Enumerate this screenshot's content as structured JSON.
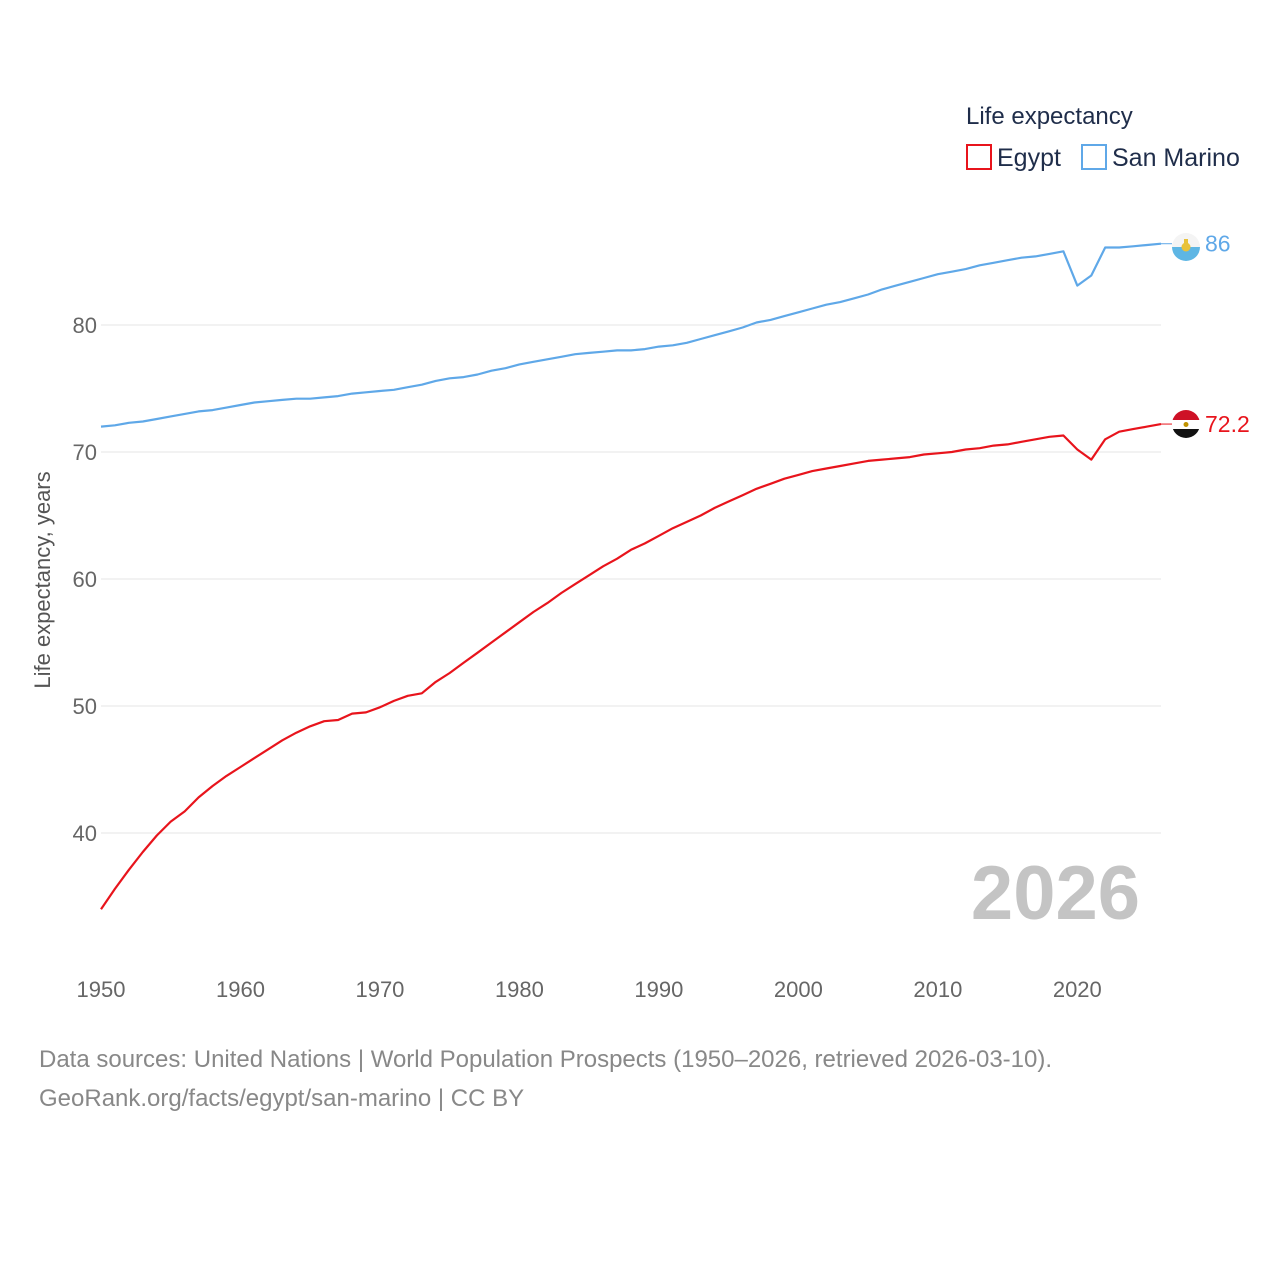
{
  "chart_data": {
    "type": "line",
    "legend_title": "Life expectancy",
    "ylabel": "Life expectancy, years",
    "xlabel": "",
    "xlim": [
      1950,
      2026
    ],
    "ylim": [
      32,
      90
    ],
    "x_ticks": [
      1950,
      1960,
      1970,
      1980,
      1990,
      2000,
      2010,
      2020
    ],
    "y_ticks": [
      40,
      50,
      60,
      70,
      80
    ],
    "current_year": "2026",
    "legend_position": "top-right",
    "x": [
      1950,
      1951,
      1952,
      1953,
      1954,
      1955,
      1956,
      1957,
      1958,
      1959,
      1960,
      1961,
      1962,
      1963,
      1964,
      1965,
      1966,
      1967,
      1968,
      1969,
      1970,
      1971,
      1972,
      1973,
      1974,
      1975,
      1976,
      1977,
      1978,
      1979,
      1980,
      1981,
      1982,
      1983,
      1984,
      1985,
      1986,
      1987,
      1988,
      1989,
      1990,
      1991,
      1992,
      1993,
      1994,
      1995,
      1996,
      1997,
      1998,
      1999,
      2000,
      2001,
      2002,
      2003,
      2004,
      2005,
      2006,
      2007,
      2008,
      2009,
      2010,
      2011,
      2012,
      2013,
      2014,
      2015,
      2016,
      2017,
      2018,
      2019,
      2020,
      2021,
      2022,
      2023,
      2024,
      2025,
      2026
    ],
    "series": [
      {
        "name": "Egypt",
        "color": "#e8141c",
        "end_label": "72.2",
        "flag": "egypt-flag",
        "values": [
          34.0,
          35.6,
          37.1,
          38.5,
          39.8,
          40.9,
          41.7,
          42.8,
          43.7,
          44.5,
          45.2,
          45.9,
          46.6,
          47.3,
          47.9,
          48.4,
          48.8,
          48.9,
          49.4,
          49.5,
          49.9,
          50.4,
          50.8,
          51.0,
          51.9,
          52.6,
          53.4,
          54.2,
          55.0,
          55.8,
          56.6,
          57.4,
          58.1,
          58.9,
          59.6,
          60.3,
          61.0,
          61.6,
          62.3,
          62.8,
          63.4,
          64.0,
          64.5,
          65.0,
          65.6,
          66.1,
          66.6,
          67.1,
          67.5,
          67.9,
          68.2,
          68.5,
          68.7,
          68.9,
          69.1,
          69.3,
          69.4,
          69.5,
          69.6,
          69.8,
          69.9,
          70.0,
          70.2,
          70.3,
          70.5,
          70.6,
          70.8,
          71.0,
          71.2,
          71.3,
          70.2,
          69.4,
          71.0,
          71.6,
          71.8,
          72.0,
          72.2
        ]
      },
      {
        "name": "San Marino",
        "color": "#5fa8e8",
        "end_label": "86",
        "flag": "san-marino-flag",
        "values": [
          72.0,
          72.1,
          72.3,
          72.4,
          72.6,
          72.8,
          73.0,
          73.2,
          73.3,
          73.5,
          73.7,
          73.9,
          74.0,
          74.1,
          74.2,
          74.2,
          74.3,
          74.4,
          74.6,
          74.7,
          74.8,
          74.9,
          75.1,
          75.3,
          75.6,
          75.8,
          75.9,
          76.1,
          76.4,
          76.6,
          76.9,
          77.1,
          77.3,
          77.5,
          77.7,
          77.8,
          77.9,
          78.0,
          78.0,
          78.1,
          78.3,
          78.4,
          78.6,
          78.9,
          79.2,
          79.5,
          79.8,
          80.2,
          80.4,
          80.7,
          81.0,
          81.3,
          81.6,
          81.8,
          82.1,
          82.4,
          82.8,
          83.1,
          83.4,
          83.7,
          84.0,
          84.2,
          84.4,
          84.7,
          84.9,
          85.1,
          85.3,
          85.4,
          85.6,
          85.8,
          83.1,
          83.9,
          86.1,
          86.1,
          86.2,
          86.3,
          86.4
        ]
      }
    ]
  },
  "footer": {
    "sources": "Data sources: United Nations | World Population Prospects (1950–2026, retrieved 2026-03-10).",
    "attribution": "GeoRank.org/facts/egypt/san-marino | CC BY"
  }
}
